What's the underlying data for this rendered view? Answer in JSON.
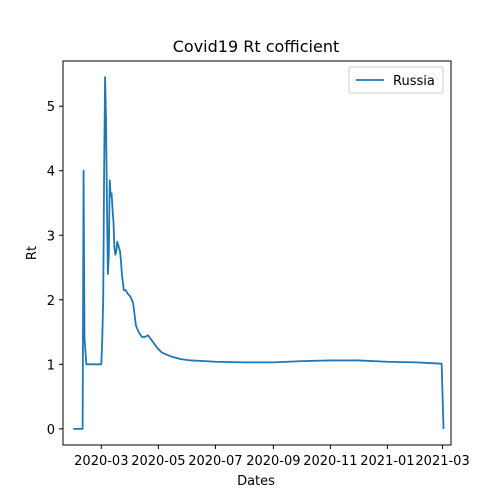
{
  "chart_data": {
    "type": "line",
    "title": "Covid19 Rt cofficient",
    "xlabel": "Dates",
    "ylabel": "Rt",
    "x_range": [
      "2020-01-20",
      "2021-03-10"
    ],
    "ylim": [
      -0.25,
      5.7
    ],
    "x_ticks": [
      "2020-03",
      "2020-05",
      "2020-07",
      "2020-09",
      "2020-11",
      "2021-01",
      "2021-03"
    ],
    "y_ticks": [
      0,
      1,
      2,
      3,
      4,
      5
    ],
    "grid": false,
    "legend": "top-right",
    "colors": {
      "series": "#1f77b4",
      "axis": "#000000"
    },
    "series": [
      {
        "name": "Russia",
        "x": [
          "2020-01-31",
          "2020-02-10",
          "2020-02-11",
          "2020-02-12",
          "2020-02-14",
          "2020-02-28",
          "2020-03-01",
          "2020-03-02",
          "2020-03-03",
          "2020-03-04",
          "2020-03-05",
          "2020-03-06",
          "2020-03-07",
          "2020-03-08",
          "2020-03-09",
          "2020-03-10",
          "2020-03-11",
          "2020-03-12",
          "2020-03-13",
          "2020-03-14",
          "2020-03-15",
          "2020-03-16",
          "2020-03-17",
          "2020-03-18",
          "2020-03-19",
          "2020-03-20",
          "2020-03-21",
          "2020-03-22",
          "2020-03-23",
          "2020-03-25",
          "2020-03-27",
          "2020-03-29",
          "2020-04-01",
          "2020-04-04",
          "2020-04-07",
          "2020-04-10",
          "2020-04-13",
          "2020-04-16",
          "2020-04-20",
          "2020-04-25",
          "2020-04-30",
          "2020-05-05",
          "2020-05-10",
          "2020-05-15",
          "2020-05-20",
          "2020-05-25",
          "2020-06-05",
          "2020-06-20",
          "2020-07-01",
          "2020-08-01",
          "2020-09-01",
          "2020-10-01",
          "2020-11-01",
          "2020-12-01",
          "2021-01-01",
          "2021-02-01",
          "2021-02-28",
          "2021-03-02"
        ],
        "values": [
          0,
          0,
          4.0,
          1.4,
          1.0,
          1.0,
          1.0,
          1.4,
          2.0,
          4.0,
          5.45,
          4.8,
          3.5,
          2.4,
          2.7,
          3.85,
          3.6,
          3.65,
          3.4,
          3.2,
          2.8,
          2.7,
          2.75,
          2.9,
          2.85,
          2.8,
          2.75,
          2.6,
          2.4,
          2.15,
          2.15,
          2.1,
          2.05,
          1.95,
          1.6,
          1.5,
          1.43,
          1.42,
          1.45,
          1.35,
          1.25,
          1.18,
          1.15,
          1.12,
          1.1,
          1.08,
          1.06,
          1.05,
          1.04,
          1.03,
          1.03,
          1.05,
          1.06,
          1.06,
          1.04,
          1.03,
          1.01,
          0.0
        ]
      }
    ]
  }
}
